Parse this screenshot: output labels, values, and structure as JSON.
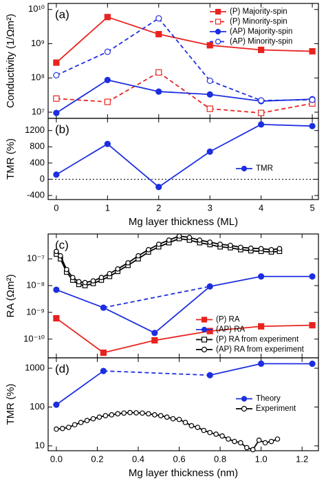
{
  "chart_data": [
    {
      "type": "line",
      "label": "(a)",
      "ylabel": "Conductivity (1/Ωm²)",
      "log_y": true,
      "legend": "upper right",
      "x": [
        0,
        1,
        2,
        3,
        4,
        5
      ],
      "xlim": [
        -0.16,
        5.12
      ],
      "ylim": [
        6600000,
        15000000000
      ],
      "yticks": [
        {
          "value": 10000000,
          "label": "10⁷"
        },
        {
          "value": 100000000,
          "label": "10⁸"
        },
        {
          "value": 1000000000,
          "label": "10⁹"
        },
        {
          "value": 10000000000,
          "label": "10¹⁰"
        }
      ],
      "series": [
        {
          "name": "(P) Majority-spin",
          "color": "#e8231f",
          "marker": "square",
          "filled": true,
          "dashed": false,
          "values": [
            280000000,
            6000000000,
            1900000000,
            900000000,
            660000000,
            600000000
          ]
        },
        {
          "name": "(P) Minority-spin",
          "color": "#e8231f",
          "marker": "square",
          "filled": false,
          "dashed": true,
          "values": [
            25000000,
            20000000,
            145000000,
            12600000,
            9500000,
            18000000
          ]
        },
        {
          "name": "(AP) Majority-spin",
          "color": "#1c2ee0",
          "marker": "circle",
          "filled": true,
          "dashed": false,
          "values": [
            9500000,
            87000000,
            40000000,
            33000000,
            21000000,
            24000000
          ]
        },
        {
          "name": "(AP) Minority-spin",
          "color": "#1c2ee0",
          "marker": "circle",
          "filled": false,
          "dashed": true,
          "values": [
            120000000,
            580000000,
            5500000000,
            83000000,
            22000000,
            23000000
          ]
        }
      ]
    },
    {
      "type": "line",
      "label": "(b)",
      "ylabel": "TMR (%)",
      "xlabel": "Mg layer thickness (ML)",
      "log_y": false,
      "legend": "center right",
      "zero_line": true,
      "x": [
        0,
        1,
        2,
        3,
        4,
        5
      ],
      "xlim": [
        -0.16,
        5.12
      ],
      "xticks": [
        0,
        1,
        2,
        3,
        4,
        5
      ],
      "ylim": [
        -500,
        1500
      ],
      "yticks": [
        -400,
        0,
        400,
        800,
        1200
      ],
      "series": [
        {
          "name": "TMR",
          "color": "#1c2ee0",
          "marker": "circle",
          "filled": true,
          "dashed": false,
          "values": [
            115,
            870,
            -190,
            680,
            1350,
            1310
          ]
        }
      ]
    },
    {
      "type": "line",
      "label": "(c)",
      "ylabel": "RA (Ωm²)",
      "log_y": true,
      "legend": "lower right",
      "xlim": [
        -0.04,
        1.28
      ],
      "ylim": [
        2e-11,
        8.5e-07
      ],
      "yticks": [
        {
          "value": 1e-10,
          "label": "10⁻¹⁰"
        },
        {
          "value": 1e-09,
          "label": "10⁻⁹"
        },
        {
          "value": 1e-08,
          "label": "10⁻⁸"
        },
        {
          "value": 1e-07,
          "label": "10⁻⁷"
        }
      ],
      "series": [
        {
          "name": "(P) RA",
          "color": "#e8231f",
          "marker": "square",
          "filled": true,
          "dashed": false,
          "x": [
            0,
            0.23,
            0.48,
            0.75,
            1.0,
            1.25
          ],
          "values": [
            6e-10,
            3.1e-11,
            9e-11,
            2e-10,
            3e-10,
            3.3e-10
          ]
        },
        {
          "name": "(AP) RA",
          "color": "#1c2ee0",
          "marker": "circle",
          "filled": true,
          "dashed": false,
          "x": [
            0,
            0.23,
            0.48,
            0.75,
            1.0,
            1.25
          ],
          "values": [
            7e-09,
            1.5e-09,
            1.7e-10,
            9.3e-09,
            2.2e-08,
            2.2e-08
          ]
        },
        {
          "name": "(P) RA from experiment",
          "color": "#000000",
          "marker": "square",
          "filled": false,
          "dashed": false,
          "x": [
            0,
            0.02,
            0.05,
            0.08,
            0.11,
            0.14,
            0.18,
            0.22,
            0.26,
            0.3,
            0.35,
            0.4,
            0.45,
            0.5,
            0.55,
            0.6,
            0.65,
            0.7,
            0.75,
            0.8,
            0.85,
            0.9,
            0.95,
            1.0,
            1.05,
            1.09
          ],
          "values": [
            1.5e-07,
            1e-07,
            3.2e-08,
            1.6e-08,
            1.1e-08,
            1e-08,
            1.2e-08,
            1.6e-08,
            2.2e-08,
            3.4e-08,
            5.7e-08,
            1e-07,
            1.8e-07,
            2.8e-07,
            4e-07,
            5.7e-07,
            5e-07,
            4e-07,
            3.4e-07,
            2.8e-07,
            2.6e-07,
            2.2e-07,
            2e-07,
            1.9e-07,
            1.8e-07,
            1.9e-07
          ]
        },
        {
          "name": "(AP) RA from experiment",
          "color": "#000000",
          "marker": "circle",
          "filled": false,
          "dashed": false,
          "x": [
            0,
            0.02,
            0.05,
            0.08,
            0.11,
            0.14,
            0.18,
            0.22,
            0.26,
            0.3,
            0.35,
            0.4,
            0.45,
            0.5,
            0.55,
            0.6,
            0.65,
            0.7,
            0.75,
            0.8,
            0.85,
            0.9,
            0.95,
            1.0,
            1.05,
            1.09
          ],
          "values": [
            1.9e-07,
            1.3e-07,
            4e-08,
            2e-08,
            1.4e-08,
            1.3e-08,
            1.5e-08,
            2e-08,
            2.8e-08,
            4.2e-08,
            7.1e-08,
            1.3e-07,
            2.2e-07,
            3.5e-07,
            5e-07,
            7.1e-07,
            6.3e-07,
            5e-07,
            4.2e-07,
            3.5e-07,
            3.2e-07,
            2.7e-07,
            2.5e-07,
            2.4e-07,
            2.2e-07,
            2.4e-07
          ]
        }
      ]
    },
    {
      "type": "line",
      "label": "(d)",
      "ylabel": "TMR (%)",
      "xlabel": "Mg layer thickness (nm)",
      "log_y": true,
      "legend": "center right",
      "xlim": [
        -0.04,
        1.28
      ],
      "xticks": [
        {
          "value": 0,
          "label": "0.0"
        },
        0.2,
        0.4,
        0.6,
        0.8,
        {
          "value": 1,
          "label": "1.0"
        },
        1.2
      ],
      "ylim": [
        7.5,
        1850
      ],
      "yticks": [
        10,
        100,
        1000
      ],
      "series": [
        {
          "name": "Theory",
          "color": "#1c2ee0",
          "marker": "circle",
          "filled": true,
          "dashed": false,
          "x": [
            0,
            0.23,
            0.75,
            1.0,
            1.25
          ],
          "values": [
            115,
            850,
            660,
            1310,
            1300
          ]
        },
        {
          "name": "Experiment",
          "color": "#000000",
          "marker": "circle",
          "filled": false,
          "dashed": false,
          "x": [
            0,
            0.03,
            0.06,
            0.09,
            0.12,
            0.15,
            0.18,
            0.21,
            0.24,
            0.27,
            0.3,
            0.33,
            0.36,
            0.39,
            0.42,
            0.45,
            0.48,
            0.51,
            0.54,
            0.57,
            0.6,
            0.63,
            0.66,
            0.69,
            0.72,
            0.75,
            0.78,
            0.81,
            0.84,
            0.87,
            0.9,
            0.93,
            0.96,
            0.99,
            1.02,
            1.05,
            1.08
          ],
          "values": [
            27,
            28,
            30,
            35,
            40,
            45,
            50,
            55,
            60,
            63,
            67,
            70,
            72,
            71,
            70,
            67,
            63,
            60,
            55,
            50,
            48,
            40,
            33,
            30,
            25,
            22,
            20,
            18,
            15,
            13,
            12,
            9,
            8,
            14,
            12,
            13,
            15
          ]
        }
      ]
    }
  ]
}
